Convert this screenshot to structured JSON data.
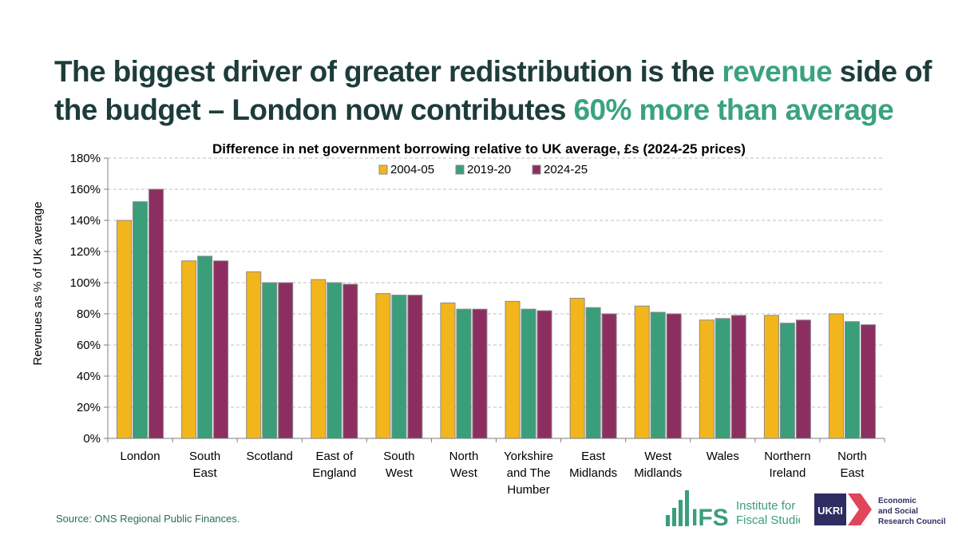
{
  "headline": {
    "part1": "The biggest driver of greater redistribution is the ",
    "highlight1": "revenue",
    "part2": " side of the budget – London now contributes ",
    "highlight2": "60% more than average"
  },
  "chart_data": {
    "type": "bar",
    "title": "Difference in net government borrowing relative to UK average, £s (2024-25 prices)",
    "xlabel": "",
    "ylabel": "Revenues as % of UK average",
    "ylim": [
      0,
      180
    ],
    "yticks": [
      "0%",
      "20%",
      "40%",
      "60%",
      "80%",
      "100%",
      "120%",
      "140%",
      "160%",
      "180%"
    ],
    "grid": true,
    "legend_position": "top-center",
    "categories": [
      [
        "London"
      ],
      [
        "South",
        "East"
      ],
      [
        "Scotland"
      ],
      [
        "East of",
        "England"
      ],
      [
        "South",
        "West"
      ],
      [
        "North",
        "West"
      ],
      [
        "Yorkshire",
        "and The",
        "Humber"
      ],
      [
        "East",
        "Midlands"
      ],
      [
        "West",
        "Midlands"
      ],
      [
        "Wales"
      ],
      [
        "Northern",
        "Ireland"
      ],
      [
        "North",
        "East"
      ]
    ],
    "series": [
      {
        "name": "2004-05",
        "color": "#f2b61c",
        "values": [
          140,
          114,
          107,
          102,
          93,
          87,
          88,
          90,
          85,
          76,
          79,
          80
        ]
      },
      {
        "name": "2019-20",
        "color": "#3a9e7a",
        "values": [
          152,
          117,
          100,
          100,
          92,
          83,
          83,
          84,
          81,
          77,
          74,
          75
        ]
      },
      {
        "name": "2024-25",
        "color": "#8c2f60",
        "values": [
          160,
          114,
          100,
          99,
          92,
          83,
          82,
          80,
          80,
          79,
          76,
          73
        ]
      }
    ]
  },
  "source": "Source: ONS Regional Public Finances.",
  "logos": {
    "ifs_mark": "IFS",
    "ifs_name_line1": "Institute for",
    "ifs_name_line2": "Fiscal Studies",
    "ukri_mark": "UKRI",
    "esrc_line1": "Economic",
    "esrc_line2": "and Social",
    "esrc_line3": "Research Council"
  }
}
